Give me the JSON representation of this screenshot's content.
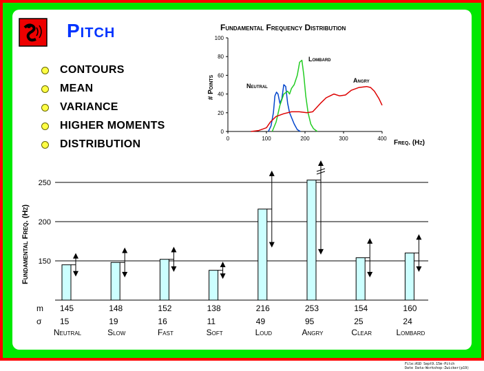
{
  "slide": {
    "title": "Pitch",
    "bullets": [
      "CONTOURS",
      "MEAN",
      "VARIANCE",
      "HIGHER MOMENTS",
      "DISTRIBUTION"
    ],
    "colors": {
      "frame_outer": "#ff0000",
      "frame_inner": "#00e800",
      "title": "#0033ff",
      "bullet_dot": "#ffff44",
      "bar_fill": "#ccffff"
    },
    "footer": [
      "File:ASD Sept9.15m-Pitch",
      "Date Data-Workshop-Zwicker(p19)"
    ]
  },
  "chart_data": [
    {
      "type": "line",
      "title": "Fundamental Frequency Distribution",
      "xlabel": "Freq. (Hz)",
      "ylabel": "# Points",
      "xlim": [
        0,
        400
      ],
      "ylim": [
        0,
        100
      ],
      "xticks": [
        0,
        100,
        200,
        300,
        400
      ],
      "yticks": [
        0,
        20,
        40,
        60,
        80,
        100
      ],
      "series": [
        {
          "name": "Neutral",
          "color": "#0044cc",
          "x": [
            105,
            112,
            118,
            122,
            126,
            130,
            135,
            140,
            145,
            150,
            155,
            160,
            165,
            172,
            180,
            188
          ],
          "y": [
            0,
            6,
            20,
            38,
            42,
            40,
            30,
            35,
            50,
            48,
            30,
            20,
            15,
            8,
            2,
            0
          ]
        },
        {
          "name": "Lombard",
          "color": "#22cc22",
          "x": [
            115,
            125,
            135,
            145,
            155,
            160,
            165,
            172,
            180,
            186,
            192,
            197,
            202,
            208,
            215,
            222,
            232
          ],
          "y": [
            0,
            10,
            28,
            40,
            43,
            40,
            46,
            50,
            60,
            74,
            76,
            60,
            38,
            20,
            8,
            3,
            0
          ]
        },
        {
          "name": "Angry",
          "color": "#dd0000",
          "x": [
            60,
            80,
            100,
            110,
            125,
            145,
            165,
            185,
            205,
            220,
            240,
            255,
            265,
            275,
            290,
            305,
            320,
            340,
            360,
            370,
            380,
            392,
            400
          ],
          "y": [
            0,
            1,
            4,
            10,
            16,
            19,
            21,
            21,
            20,
            21,
            30,
            36,
            38,
            40,
            38,
            39,
            44,
            47,
            48,
            47,
            43,
            35,
            28
          ]
        }
      ]
    },
    {
      "type": "bar",
      "ylabel": "Fundamental Freq. (Hz)",
      "ylim": [
        100,
        260
      ],
      "yticks": [
        150,
        200,
        250
      ],
      "categories": [
        "Neutral",
        "Slow",
        "Fast",
        "Soft",
        "Loud",
        "Angry",
        "Clear",
        "Lombard"
      ],
      "row_labels": [
        "m",
        "σ"
      ],
      "mean": [
        145,
        148,
        152,
        138,
        216,
        253,
        154,
        160
      ],
      "sigma": [
        15,
        19,
        16,
        11,
        49,
        95,
        25,
        24
      ]
    }
  ]
}
